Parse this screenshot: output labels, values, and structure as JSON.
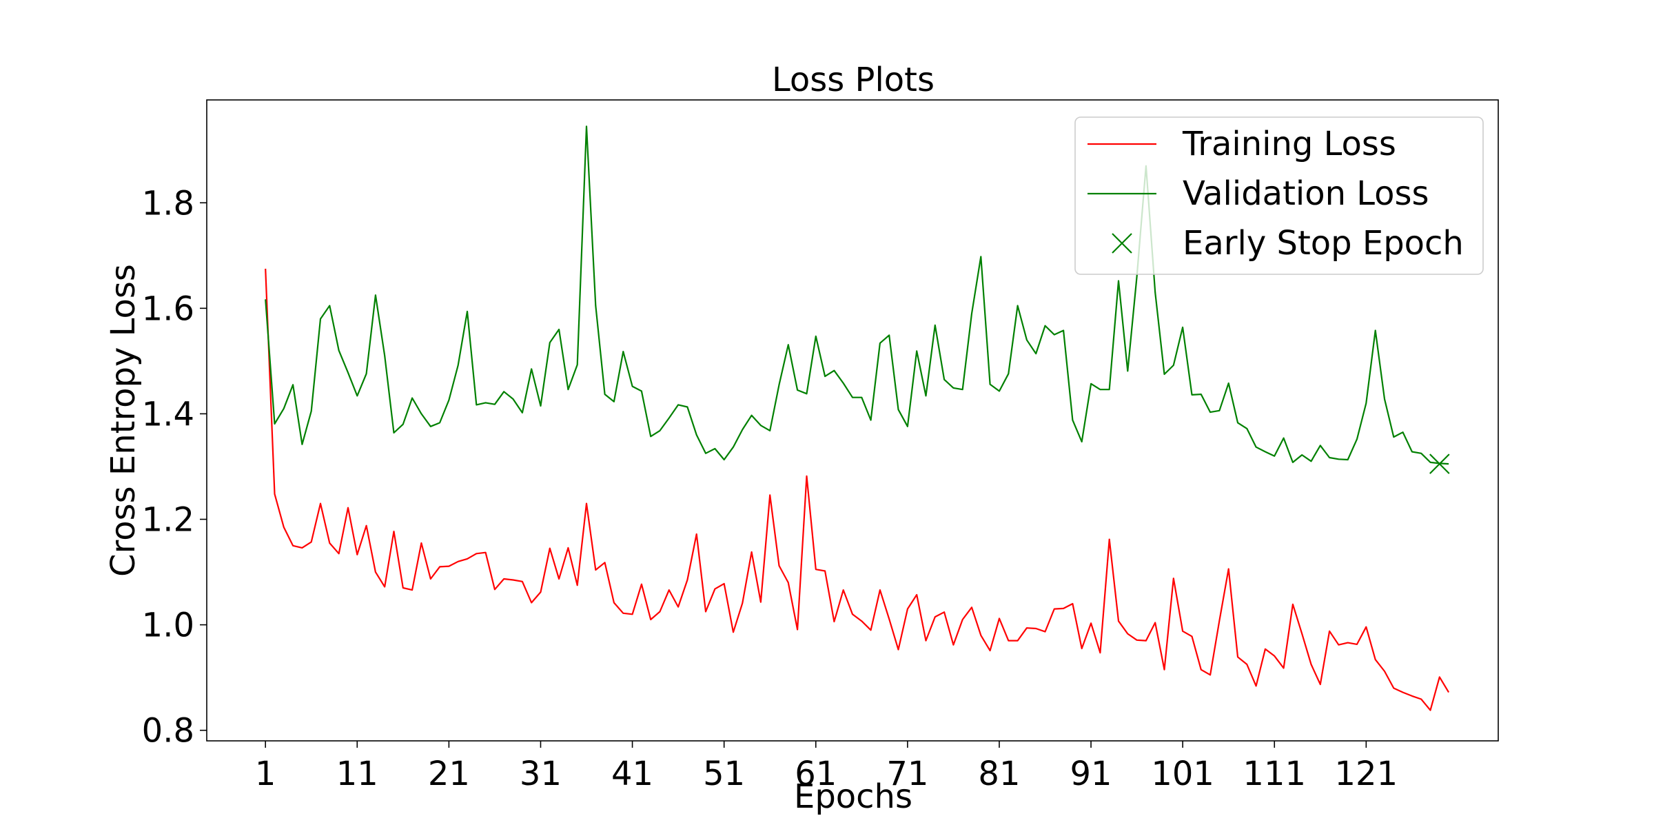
{
  "chart_data": {
    "type": "line",
    "title": "Loss Plots",
    "xlabel": "Epochs",
    "ylabel": "Cross Entropy Loss",
    "xlim": [
      -5.4,
      135.4
    ],
    "ylim": [
      0.78,
      1.995
    ],
    "x_ticks": [
      1,
      11,
      21,
      31,
      41,
      51,
      61,
      71,
      81,
      91,
      101,
      111,
      121
    ],
    "y_ticks": [
      0.8,
      1.0,
      1.2,
      1.4,
      1.6,
      1.8
    ],
    "y_tick_labels": [
      "0.8",
      "1.0",
      "1.2",
      "1.4",
      "1.6",
      "1.8"
    ],
    "grid": false,
    "legend_position": "top-right",
    "series": [
      {
        "name": "Training Loss",
        "color": "#ff0000",
        "x_start": 1,
        "values": [
          1.675,
          1.248,
          1.185,
          1.15,
          1.146,
          1.157,
          1.23,
          1.155,
          1.135,
          1.222,
          1.133,
          1.188,
          1.1,
          1.072,
          1.177,
          1.07,
          1.066,
          1.155,
          1.087,
          1.11,
          1.111,
          1.12,
          1.125,
          1.135,
          1.137,
          1.067,
          1.087,
          1.085,
          1.082,
          1.042,
          1.062,
          1.145,
          1.087,
          1.146,
          1.075,
          1.23,
          1.104,
          1.118,
          1.042,
          1.022,
          1.02,
          1.077,
          1.01,
          1.025,
          1.066,
          1.034,
          1.085,
          1.172,
          1.025,
          1.068,
          1.078,
          0.986,
          1.041,
          1.138,
          1.043,
          1.246,
          1.112,
          1.08,
          0.991,
          1.282,
          1.105,
          1.102,
          1.006,
          1.066,
          1.02,
          1.007,
          0.99,
          1.066,
          1.011,
          0.953,
          1.03,
          1.057,
          0.97,
          1.015,
          1.024,
          0.962,
          1.01,
          1.033,
          0.98,
          0.951,
          1.012,
          0.97,
          0.97,
          0.994,
          0.993,
          0.987,
          1.03,
          1.031,
          1.04,
          0.955,
          1.003,
          0.947,
          1.162,
          1.007,
          0.983,
          0.971,
          0.97,
          1.004,
          0.915,
          1.088,
          0.988,
          0.978,
          0.915,
          0.905,
          1.008,
          1.106,
          0.939,
          0.925,
          0.884,
          0.954,
          0.941,
          0.918,
          1.039,
          0.983,
          0.925,
          0.887,
          0.988,
          0.962,
          0.966,
          0.963,
          0.996,
          0.934,
          0.912,
          0.88,
          0.872,
          0.865,
          0.859,
          0.838,
          0.901,
          0.872
        ]
      },
      {
        "name": "Validation Loss",
        "color": "#008000",
        "x_start": 1,
        "values": [
          1.617,
          1.381,
          1.41,
          1.455,
          1.342,
          1.405,
          1.58,
          1.605,
          1.52,
          1.478,
          1.434,
          1.476,
          1.625,
          1.51,
          1.364,
          1.38,
          1.43,
          1.4,
          1.376,
          1.383,
          1.426,
          1.492,
          1.594,
          1.417,
          1.421,
          1.418,
          1.442,
          1.428,
          1.402,
          1.485,
          1.415,
          1.535,
          1.56,
          1.446,
          1.493,
          1.945,
          1.605,
          1.437,
          1.423,
          1.518,
          1.452,
          1.443,
          1.357,
          1.368,
          1.392,
          1.417,
          1.413,
          1.36,
          1.325,
          1.334,
          1.313,
          1.337,
          1.37,
          1.397,
          1.378,
          1.368,
          1.455,
          1.531,
          1.445,
          1.438,
          1.547,
          1.471,
          1.482,
          1.458,
          1.431,
          1.431,
          1.388,
          1.534,
          1.549,
          1.408,
          1.376,
          1.519,
          1.434,
          1.568,
          1.465,
          1.449,
          1.446,
          1.59,
          1.698,
          1.456,
          1.443,
          1.476,
          1.605,
          1.54,
          1.514,
          1.567,
          1.55,
          1.558,
          1.388,
          1.347,
          1.457,
          1.446,
          1.446,
          1.652,
          1.481,
          1.66,
          1.87,
          1.63,
          1.475,
          1.492,
          1.564,
          1.436,
          1.437,
          1.403,
          1.406,
          1.458,
          1.383,
          1.372,
          1.337,
          1.328,
          1.32,
          1.354,
          1.308,
          1.322,
          1.31,
          1.34,
          1.317,
          1.314,
          1.313,
          1.352,
          1.42,
          1.558,
          1.428,
          1.356,
          1.365,
          1.328,
          1.325,
          1.308,
          1.306,
          1.305
        ]
      }
    ],
    "markers": [
      {
        "name": "Early Stop Epoch",
        "color": "#008000",
        "symbol": "x",
        "x": 129,
        "y": 1.305
      }
    ]
  }
}
